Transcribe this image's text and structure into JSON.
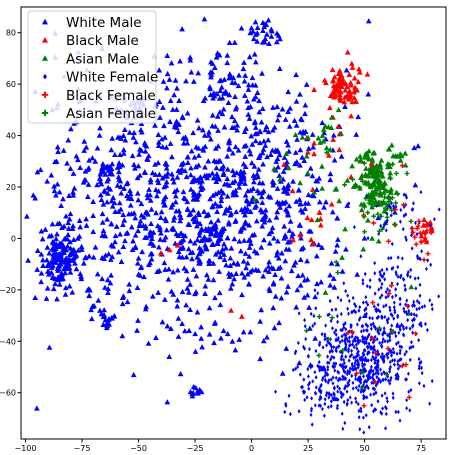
{
  "chart_data": {
    "type": "scatter",
    "title": "",
    "xlabel": "",
    "ylabel": "",
    "xlim": [
      -102,
      86
    ],
    "ylim": [
      -78,
      90
    ],
    "x_ticks": [
      -100,
      -75,
      -50,
      -25,
      0,
      25,
      50,
      75
    ],
    "x_tick_labels": [
      "−100",
      "−75",
      "−50",
      "−25",
      "0",
      "25",
      "50",
      "75"
    ],
    "y_ticks": [
      -60,
      -40,
      -20,
      0,
      20,
      40,
      60,
      80
    ],
    "y_tick_labels": [
      "−60",
      "−40",
      "−20",
      "0",
      "20",
      "40",
      "60",
      "80"
    ],
    "grid": false,
    "legend_position": "top-left",
    "marker_density": 0.5,
    "series": [
      {
        "name": "White Male",
        "marker": "triangle",
        "color": "#0000ff",
        "clusters": [
          {
            "cx": -30,
            "cy": 12,
            "sx": 33,
            "sy": 26,
            "n": 2100
          },
          {
            "cx": -85,
            "cy": -8,
            "sx": 4,
            "sy": 6,
            "n": 260
          },
          {
            "cx": -65,
            "cy": 27,
            "sx": 1.6,
            "sy": 1.6,
            "n": 40
          },
          {
            "cx": -64,
            "cy": -32,
            "sx": 1.6,
            "sy": 1.6,
            "n": 30
          },
          {
            "cx": -16,
            "cy": 2,
            "sx": 2,
            "sy": 2,
            "n": 45
          },
          {
            "cx": -5,
            "cy": 24,
            "sx": 1.4,
            "sy": 1.4,
            "n": 25
          },
          {
            "cx": -50,
            "cy": 53,
            "sx": 1.5,
            "sy": 1.5,
            "n": 20
          },
          {
            "cx": -25,
            "cy": -59,
            "sx": 1.4,
            "sy": 1.4,
            "n": 20
          },
          {
            "cx": 5,
            "cy": 80,
            "sx": 4,
            "sy": 2.3,
            "n": 55
          },
          {
            "cx": 10,
            "cy": 20,
            "sx": 12,
            "sy": 22,
            "n": 320
          },
          {
            "cx": -10,
            "cy": 60,
            "sx": 10,
            "sy": 8,
            "n": 120
          }
        ]
      },
      {
        "name": "Black Male",
        "marker": "triangle",
        "color": "#ff0000",
        "clusters": [
          {
            "cx": 40,
            "cy": 59,
            "sx": 4,
            "sy": 4.5,
            "n": 160
          },
          {
            "cx": 78,
            "cy": 3,
            "sx": 1.5,
            "sy": 2.5,
            "n": 25
          },
          {
            "cx": 30,
            "cy": 35,
            "sx": 8,
            "sy": 8,
            "n": 25
          },
          {
            "cx": 22,
            "cy": 5,
            "sx": 8,
            "sy": 10,
            "n": 20
          },
          {
            "cx": -25,
            "cy": -15,
            "sx": 15,
            "sy": 10,
            "n": 10
          }
        ]
      },
      {
        "name": "Asian Male",
        "marker": "triangle",
        "color": "#008000",
        "clusters": [
          {
            "cx": 55,
            "cy": 24,
            "sx": 4.5,
            "sy": 6,
            "n": 230
          },
          {
            "cx": 65,
            "cy": 32,
            "sx": 1.6,
            "sy": 1.5,
            "n": 20
          },
          {
            "cx": 37,
            "cy": 40,
            "sx": 6,
            "sy": 5,
            "n": 30
          },
          {
            "cx": 25,
            "cy": 20,
            "sx": 8,
            "sy": 8,
            "n": 30
          },
          {
            "cx": 53,
            "cy": 0,
            "sx": 12,
            "sy": 12,
            "n": 20
          }
        ]
      },
      {
        "name": "White Female",
        "marker": "diamond",
        "color": "#0000ff",
        "clusters": [
          {
            "cx": 50,
            "cy": -46,
            "sx": 12,
            "sy": 11,
            "n": 1250
          },
          {
            "cx": 65,
            "cy": -20,
            "sx": 8,
            "sy": 8,
            "n": 220
          },
          {
            "cx": 63,
            "cy": 8,
            "sx": 9,
            "sy": 6,
            "n": 110
          },
          {
            "cx": 30,
            "cy": -60,
            "sx": 8,
            "sy": 6,
            "n": 160
          }
        ]
      },
      {
        "name": "Black Female",
        "marker": "plus",
        "color": "#ff0000",
        "clusters": [
          {
            "cx": 75,
            "cy": 2,
            "sx": 2.5,
            "sy": 3,
            "n": 35
          },
          {
            "cx": 58,
            "cy": -35,
            "sx": 10,
            "sy": 14,
            "n": 35
          },
          {
            "cx": 62,
            "cy": 14,
            "sx": 6,
            "sy": 8,
            "n": 15
          }
        ]
      },
      {
        "name": "Asian Female",
        "marker": "plus",
        "color": "#008000",
        "clusters": [
          {
            "cx": 57,
            "cy": 16,
            "sx": 4,
            "sy": 5,
            "n": 110
          },
          {
            "cx": 45,
            "cy": -40,
            "sx": 12,
            "sy": 12,
            "n": 25
          },
          {
            "cx": 50,
            "cy": 25,
            "sx": 8,
            "sy": 8,
            "n": 20
          }
        ]
      }
    ]
  }
}
